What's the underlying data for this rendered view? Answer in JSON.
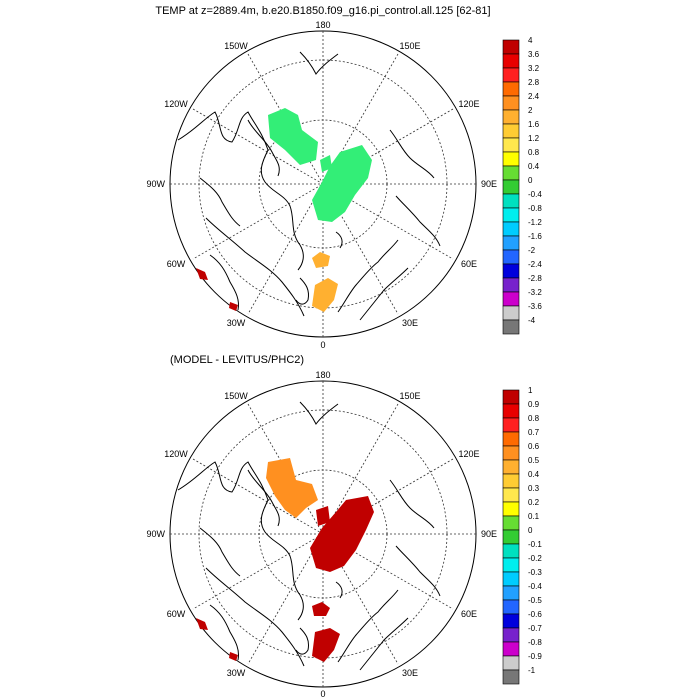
{
  "top_panel": {
    "title": "TEMP at z=2889.4m, b.e20.B1850.f09_g16.pi_control.all.125 [62-81]",
    "lon_labels": {
      "n": "180",
      "s": "0",
      "e": "90E",
      "w": "90W",
      "w150": "150W",
      "e150": "150E",
      "w120": "120W",
      "e120": "120E",
      "w60": "60W",
      "e60": "60E",
      "w30": "30W",
      "e30": "30E"
    },
    "colorbar": {
      "labels": [
        "4",
        "3.6",
        "3.2",
        "2.8",
        "2.4",
        "2",
        "1.6",
        "1.2",
        "0.8",
        "0.4",
        "0",
        "-0.4",
        "-0.8",
        "-1.2",
        "-1.6",
        "-2",
        "-2.4",
        "-2.8",
        "-3.2",
        "-3.6",
        "-4"
      ],
      "colors": [
        "#c00000",
        "#e80000",
        "#ff2020",
        "#ff6a00",
        "#ff9020",
        "#ffb030",
        "#ffcc33",
        "#ffe84d",
        "#ffff00",
        "#66dd33",
        "#33cc33",
        "#00e0c0",
        "#00eeee",
        "#00ccff",
        "#22a0ff",
        "#2266ff",
        "#0000dd",
        "#7722cc",
        "#cc00cc",
        "#cccccc",
        "#777777"
      ]
    }
  },
  "bottom_panel": {
    "title": "(MODEL - LEVITUS/PHC2)",
    "lon_labels": {
      "n": "180",
      "s": "0",
      "e": "90E",
      "w": "90W",
      "w150": "150W",
      "e150": "150E",
      "w120": "120W",
      "e120": "120E",
      "w60": "60W",
      "e60": "60E",
      "w30": "30W",
      "e30": "30E"
    },
    "colorbar": {
      "labels": [
        "1",
        "0.9",
        "0.8",
        "0.7",
        "0.6",
        "0.5",
        "0.4",
        "0.3",
        "0.2",
        "0.1",
        "0",
        "-0.1",
        "-0.2",
        "-0.3",
        "-0.4",
        "-0.5",
        "-0.6",
        "-0.7",
        "-0.8",
        "-0.9",
        "-1"
      ],
      "colors": [
        "#c00000",
        "#e80000",
        "#ff2020",
        "#ff6a00",
        "#ff9020",
        "#ffb030",
        "#ffcc33",
        "#ffe84d",
        "#ffff00",
        "#66dd33",
        "#33cc33",
        "#00e0c0",
        "#00eeee",
        "#00ccff",
        "#22a0ff",
        "#2266ff",
        "#0000dd",
        "#7722cc",
        "#cc00cc",
        "#cccccc",
        "#777777"
      ]
    }
  }
}
